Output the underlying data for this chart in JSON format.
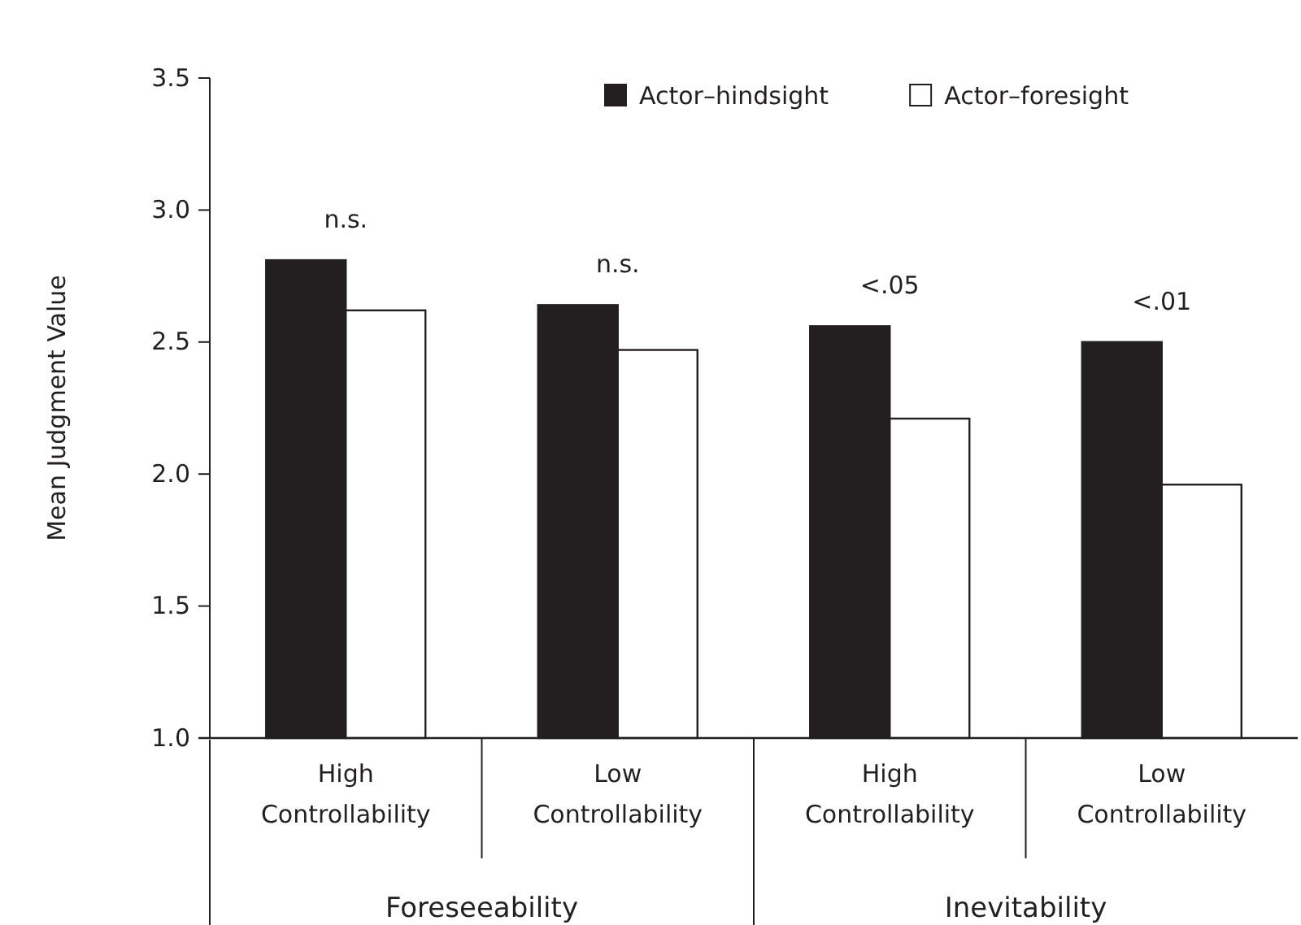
{
  "chart_data": {
    "type": "bar",
    "ylabel": "Mean Judgment Value",
    "categories": [
      "High Controllability",
      "Low Controllability",
      "High Controllability",
      "Low Controllability"
    ],
    "series": [
      {
        "name": "Actor–hindsight",
        "color": "#231f20",
        "values": [
          2.81,
          2.64,
          2.56,
          2.5
        ]
      },
      {
        "name": "Actor–foresight",
        "color": "#ffffff",
        "values": [
          2.62,
          2.47,
          2.21,
          1.96
        ]
      }
    ],
    "ylim": [
      1.0,
      3.5
    ],
    "yticks": [
      {
        "value": 1,
        "label": "1.0"
      },
      {
        "value": 1.5,
        "label": "1.5"
      },
      {
        "value": 2,
        "label": "2.0"
      },
      {
        "value": 2.5,
        "label": "2.5"
      },
      {
        "value": 3,
        "label": "3.0"
      },
      {
        "value": 3.5,
        "label": "3.5"
      }
    ],
    "grid": false,
    "legend": "top right",
    "annotations": [
      "n.s.",
      "n.s.",
      "<.05",
      "<.01",
      "Foreseeability",
      "Inevitability"
    ]
  }
}
